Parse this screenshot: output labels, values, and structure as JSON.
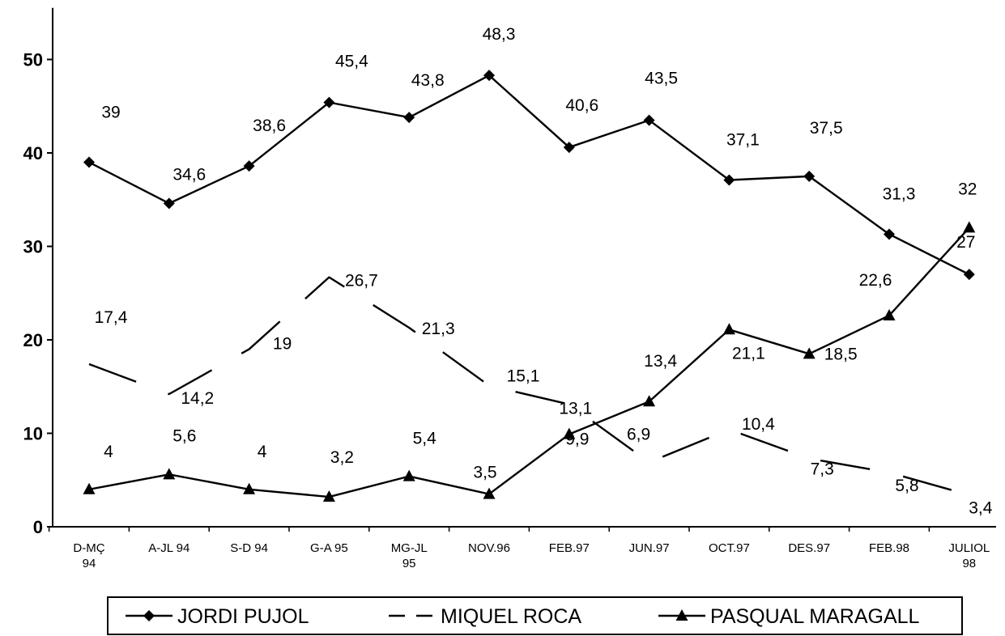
{
  "chart_data": {
    "type": "line",
    "title": "",
    "xlabel": "",
    "ylabel": "",
    "categories": [
      [
        "D-MÇ",
        "94"
      ],
      [
        "A-JL 94"
      ],
      [
        "S-D 94"
      ],
      [
        "G-A 95"
      ],
      [
        "MG-JL",
        "95"
      ],
      [
        "NOV.96"
      ],
      [
        "FEB.97"
      ],
      [
        "JUN.97"
      ],
      [
        "OCT.97"
      ],
      [
        "DES.97"
      ],
      [
        "FEB.98"
      ],
      [
        "JULIOL",
        "98"
      ]
    ],
    "ylim": [
      0,
      55
    ],
    "yticks": [
      0,
      10,
      20,
      30,
      40,
      50
    ],
    "grid": false,
    "legend_position": "bottom",
    "series": [
      {
        "name": "JORDI PUJOL",
        "marker": "diamond",
        "dash": "solid",
        "values": [
          39,
          34.6,
          38.6,
          45.4,
          43.8,
          48.3,
          40.6,
          43.5,
          37.1,
          37.5,
          31.3,
          27
        ],
        "labels": [
          "39",
          "34,6",
          "38,6",
          "45,4",
          "43,8",
          "48,3",
          "40,6",
          "43,5",
          "37,1",
          "37,5",
          "31,3",
          "27"
        ]
      },
      {
        "name": "MIQUEL ROCA",
        "marker": "none",
        "dash": "dashed",
        "values": [
          17.4,
          14.2,
          19,
          26.7,
          21.3,
          15.1,
          13.1,
          6.9,
          10.4,
          7.3,
          5.8,
          3.4
        ],
        "labels": [
          "17,4",
          "14,2",
          "19",
          "26,7",
          "21,3",
          "15,1",
          "13,1",
          "6,9",
          "10,4",
          "7,3",
          "5,8",
          "3,4"
        ]
      },
      {
        "name": "PASQUAL MARAGALL",
        "marker": "triangle",
        "dash": "solid",
        "values": [
          4,
          5.6,
          4,
          3.2,
          5.4,
          3.5,
          9.9,
          13.4,
          21.1,
          18.5,
          22.6,
          32
        ],
        "labels": [
          "4",
          "5,6",
          "4",
          "3,2",
          "5,4",
          "3,5",
          "9,9",
          "13,4",
          "21,1",
          "18,5",
          "22,6",
          "32"
        ]
      }
    ]
  }
}
